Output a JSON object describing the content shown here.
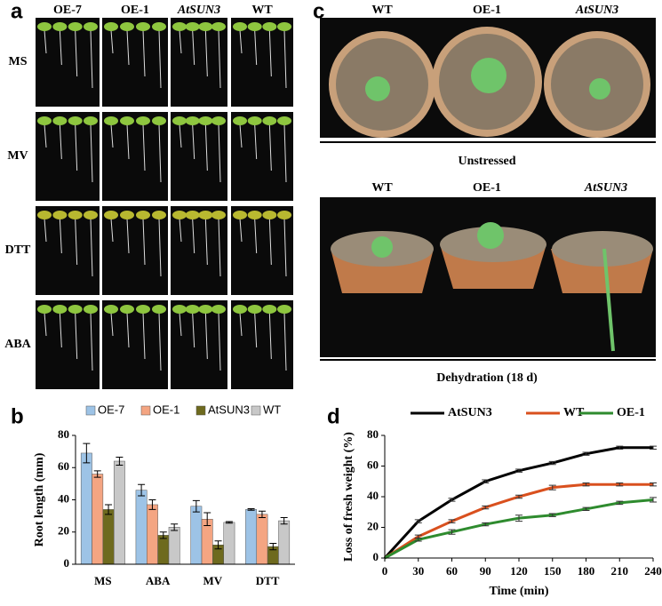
{
  "panel_a": {
    "label": "a",
    "columns": [
      "OE-7",
      "OE-1",
      "AtSUN3",
      "WT"
    ],
    "rows": [
      "MS",
      "MV",
      "DTT",
      "ABA"
    ]
  },
  "panel_c": {
    "label": "c",
    "top_labels": [
      "WT",
      "OE-1",
      "AtSUN3"
    ],
    "top_caption": "Unstressed",
    "bottom_labels": [
      "WT",
      "OE-1",
      "AtSUN3"
    ],
    "bottom_caption": "Dehydration (18 d)"
  },
  "chart_data": [
    {
      "type": "bar",
      "panel_label": "b",
      "ylabel": "Root length (mm)",
      "categories": [
        "MS",
        "ABA",
        "MV",
        "DTT"
      ],
      "ylim": [
        0,
        80
      ],
      "yticks": [
        0,
        20,
        40,
        60,
        80
      ],
      "series": [
        {
          "name": "OE-7",
          "color": "#9dc3e6",
          "values": [
            69,
            46,
            36,
            34
          ],
          "errors": [
            6,
            3.5,
            3.5,
            0.5
          ]
        },
        {
          "name": "OE-1",
          "color": "#f4a582",
          "values": [
            56,
            37,
            28,
            31
          ],
          "errors": [
            2,
            3,
            4,
            2
          ]
        },
        {
          "name": "AtSUN3",
          "color": "#6e6a1e",
          "values": [
            34,
            18,
            12,
            11
          ],
          "errors": [
            3,
            2,
            2.5,
            2
          ]
        },
        {
          "name": "WT",
          "color": "#c8c8c8",
          "values": [
            64,
            23,
            26,
            27
          ],
          "errors": [
            2.5,
            2,
            0.5,
            2
          ]
        }
      ]
    },
    {
      "type": "line",
      "panel_label": "d",
      "xlabel": "Time (min)",
      "ylabel": "Loss of fresh weight (%)",
      "x": [
        0,
        30,
        60,
        90,
        120,
        150,
        180,
        210,
        240
      ],
      "xlim": [
        0,
        240
      ],
      "xticks": [
        0,
        30,
        60,
        90,
        120,
        150,
        180,
        210,
        240
      ],
      "ylim": [
        0,
        80
      ],
      "yticks": [
        0,
        20,
        40,
        60,
        80
      ],
      "series": [
        {
          "name": "AtSUN3",
          "color": "#000000",
          "values": [
            0,
            24,
            38,
            50,
            57,
            62,
            68,
            72,
            72
          ],
          "errors": [
            0,
            1,
            1,
            1,
            1,
            1,
            1,
            1,
            1
          ]
        },
        {
          "name": "WT",
          "color": "#d9501e",
          "values": [
            0,
            14,
            24,
            33,
            40,
            46,
            48,
            48,
            48
          ],
          "errors": [
            0,
            1,
            1,
            1,
            1,
            1.5,
            1,
            1,
            1
          ]
        },
        {
          "name": "OE-1",
          "color": "#2e8b2e",
          "values": [
            0,
            12,
            17,
            22,
            26,
            28,
            32,
            36,
            38
          ],
          "errors": [
            0,
            1,
            1.5,
            1,
            2,
            1,
            1,
            1,
            1.5
          ]
        }
      ]
    }
  ]
}
